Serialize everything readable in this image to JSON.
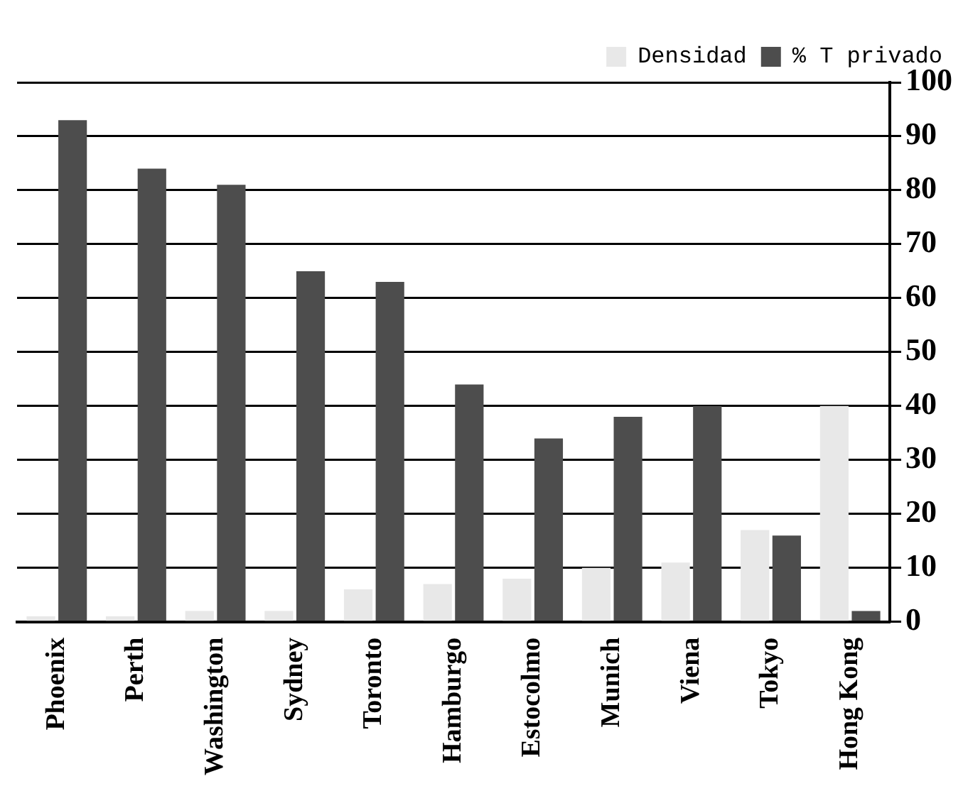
{
  "chart_data": {
    "type": "bar",
    "categories": [
      "Phoenix",
      "Perth",
      "Washington",
      "Sydney",
      "Toronto",
      "Hamburgo",
      "Estocolmo",
      "Munich",
      "Viena",
      "Tokyo",
      "Hong Kong"
    ],
    "series": [
      {
        "name": "Densidad",
        "color": "#e8e8e8",
        "values": [
          1,
          1,
          2,
          2,
          6,
          7,
          8,
          10,
          11,
          17,
          40
        ]
      },
      {
        "name": "% T privado",
        "color": "#4d4d4d",
        "values": [
          93,
          84,
          81,
          65,
          63,
          44,
          34,
          38,
          40,
          16,
          2
        ]
      }
    ],
    "ylim": [
      0,
      100
    ],
    "yticks": [
      0,
      10,
      20,
      30,
      40,
      50,
      60,
      70,
      80,
      90,
      100
    ],
    "grid": "y",
    "legend": "top right"
  }
}
